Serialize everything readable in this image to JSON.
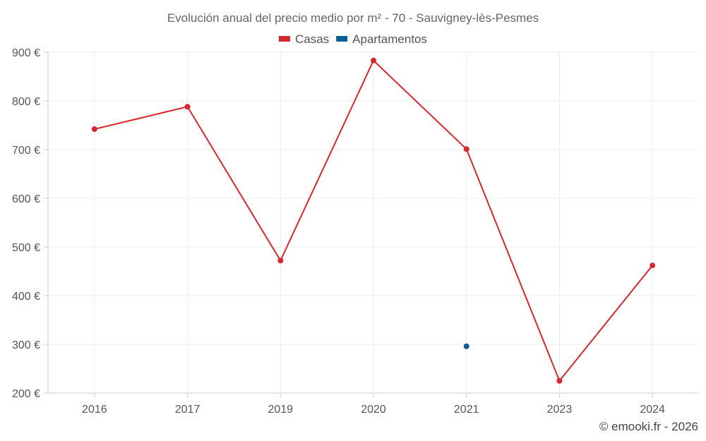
{
  "chart_data": {
    "type": "line",
    "title": "Evolución anual del precio medio por m² - 70 - Sauvigney-lès-Pesmes",
    "categories": [
      "2016",
      "2017",
      "2019",
      "2020",
      "2021",
      "2023",
      "2024"
    ],
    "series": [
      {
        "name": "Casas",
        "color": "#d7282f",
        "values": [
          742,
          788,
          472,
          883,
          701,
          225,
          462
        ]
      },
      {
        "name": "Apartamentos",
        "color": "#0e5f94",
        "values": [
          null,
          null,
          null,
          null,
          296,
          null,
          null
        ]
      }
    ],
    "ylim": [
      200,
      900
    ],
    "yticks": [
      200,
      300,
      400,
      500,
      600,
      700,
      800,
      900
    ],
    "ytick_labels": [
      "200 €",
      "300 €",
      "400 €",
      "500 €",
      "600 €",
      "700 €",
      "800 €",
      "900 €"
    ],
    "xlabel": "",
    "ylabel": "",
    "grid": true,
    "legend_position": "top-center"
  },
  "credit": "© emooki.fr - 2026"
}
